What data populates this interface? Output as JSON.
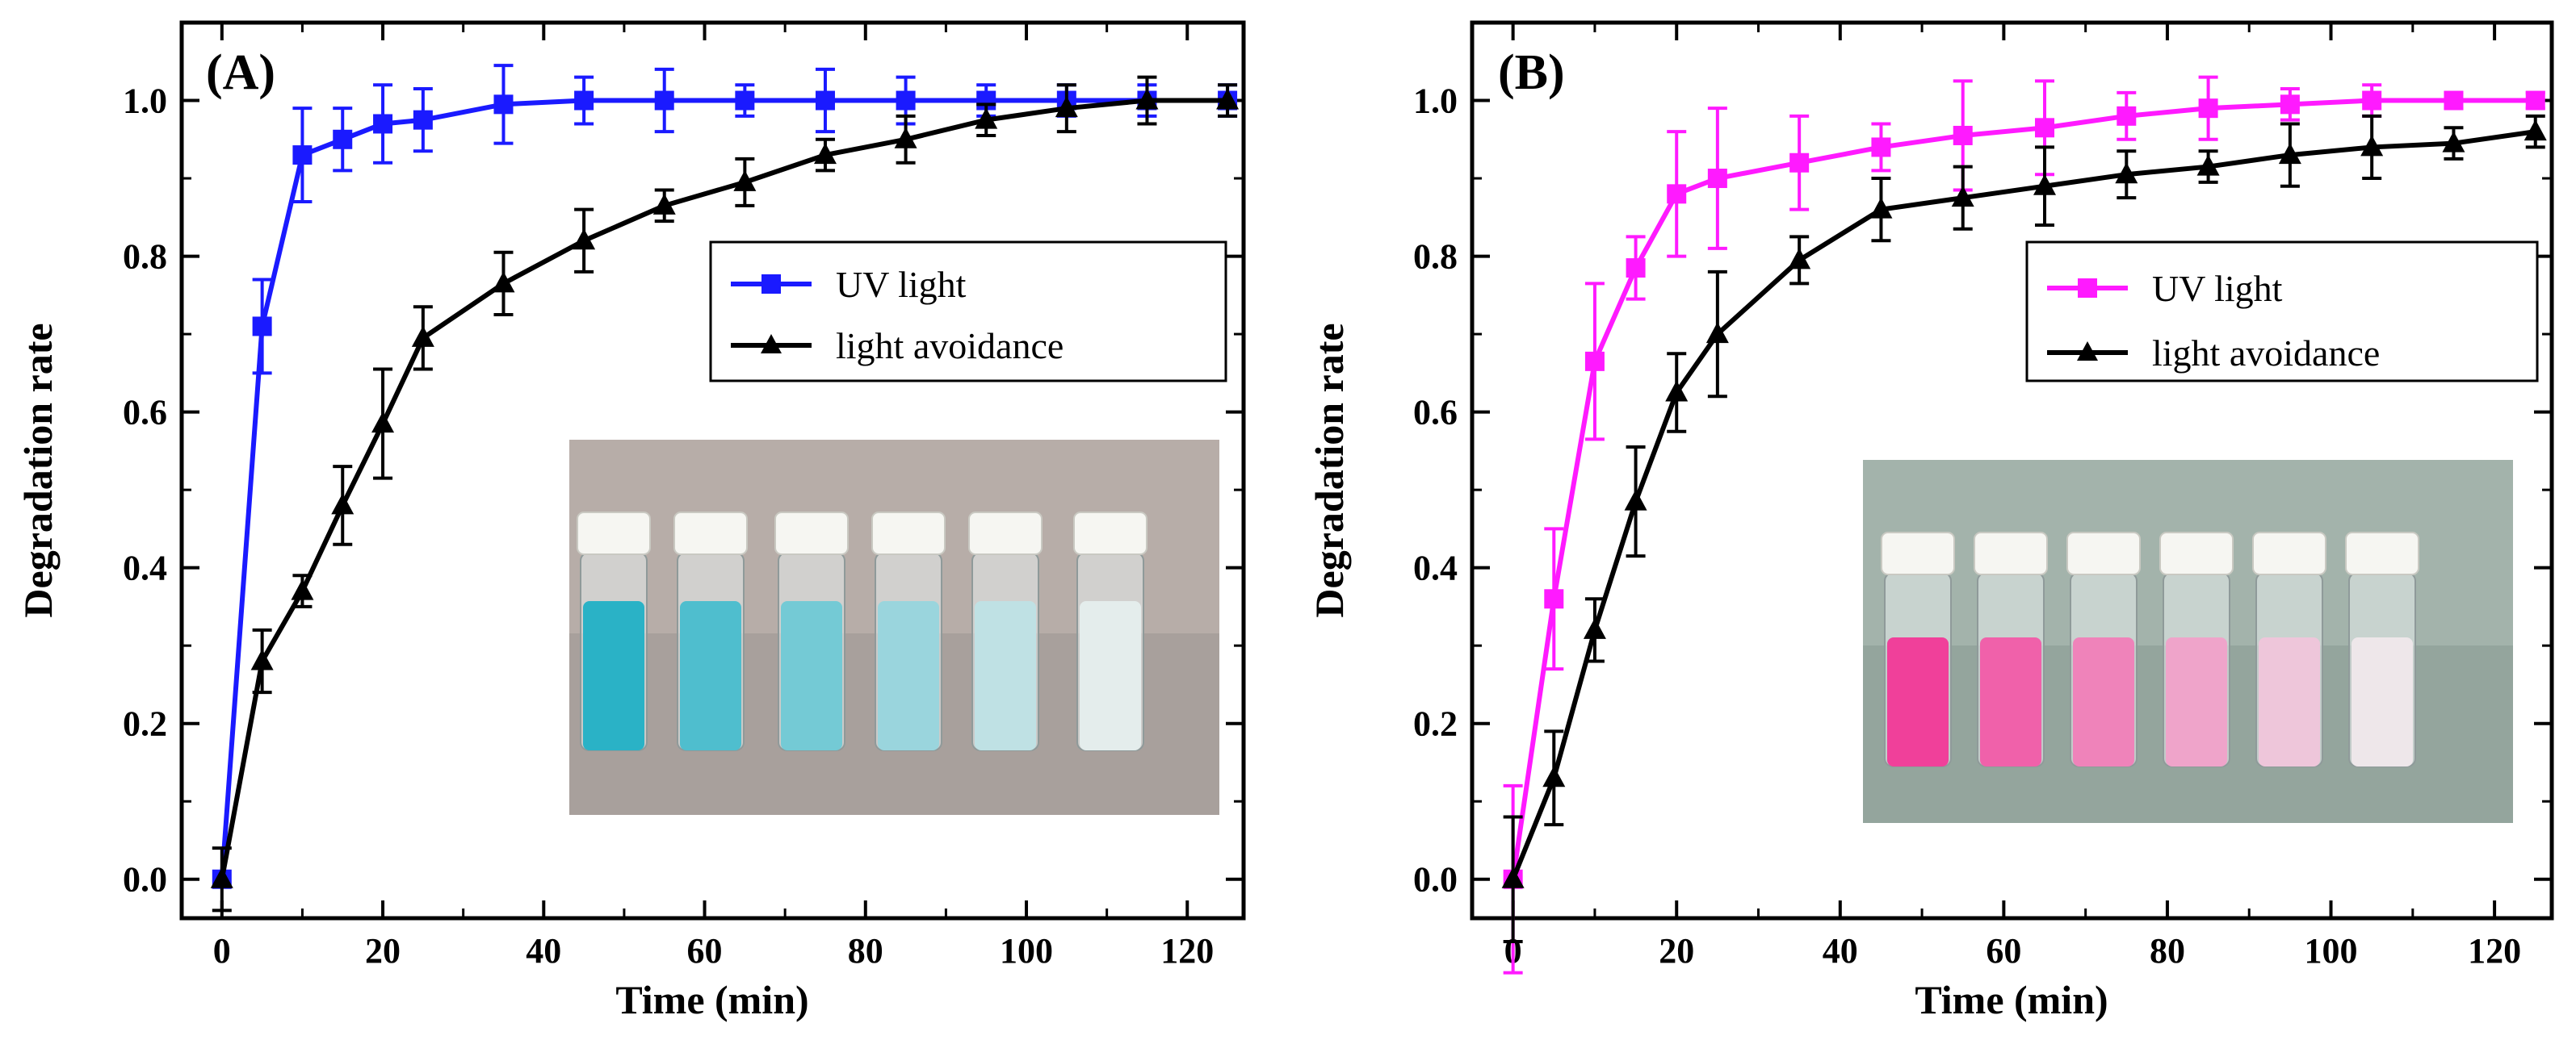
{
  "colors": {
    "uv_a": "#1a1aff",
    "uv_b": "#ff1aff",
    "avoid": "#000000",
    "inset_a_bg": "#b4aaa6",
    "inset_a_liquid": "#2ab2c6",
    "inset_b_bg": "#9fb0a8",
    "inset_b_liquid": "#f0409a"
  },
  "chart_data": [
    {
      "type": "line",
      "panel_label": "(A)",
      "xlabel": "Time (min)",
      "ylabel": "Degradation rate",
      "xlim": [
        -5,
        127
      ],
      "ylim": [
        -0.05,
        1.1
      ],
      "xticks": [
        "0",
        "20",
        "40",
        "60",
        "80",
        "100",
        "120"
      ],
      "yticks": [
        "0.0",
        "0.2",
        "0.4",
        "0.6",
        "0.8",
        "1.0"
      ],
      "legend": [
        "UV light",
        "light avoidance"
      ],
      "legend_position": "center-right",
      "inset": "photo of six vials, blue solution fading to clear",
      "series": [
        {
          "name": "UV light",
          "color_key": "uv_a",
          "marker": "square",
          "x": [
            0,
            5,
            10,
            15,
            20,
            25,
            35,
            45,
            55,
            65,
            75,
            85,
            95,
            105,
            115,
            125
          ],
          "values": [
            0.0,
            0.71,
            0.93,
            0.95,
            0.97,
            0.975,
            0.995,
            1.0,
            1.0,
            1.0,
            1.0,
            1.0,
            1.0,
            1.0,
            1.0,
            1.0
          ],
          "errors": [
            0.0,
            0.06,
            0.06,
            0.04,
            0.05,
            0.04,
            0.05,
            0.03,
            0.04,
            0.02,
            0.04,
            0.03,
            0.02,
            0.02,
            0.02,
            0.02
          ]
        },
        {
          "name": "light avoidance",
          "color_key": "avoid",
          "marker": "triangle",
          "x": [
            0,
            5,
            10,
            15,
            20,
            25,
            35,
            45,
            55,
            65,
            75,
            85,
            95,
            105,
            115,
            125
          ],
          "values": [
            0.0,
            0.28,
            0.37,
            0.48,
            0.585,
            0.695,
            0.765,
            0.82,
            0.865,
            0.895,
            0.93,
            0.95,
            0.975,
            0.99,
            1.0,
            1.0
          ],
          "errors": [
            0.04,
            0.04,
            0.02,
            0.05,
            0.07,
            0.04,
            0.04,
            0.04,
            0.02,
            0.03,
            0.02,
            0.03,
            0.02,
            0.03,
            0.03,
            0.02
          ]
        }
      ]
    },
    {
      "type": "line",
      "panel_label": "(B)",
      "xlabel": "Time (min)",
      "ylabel": "Degradation rate",
      "xlim": [
        -5,
        127
      ],
      "ylim": [
        -0.05,
        1.1
      ],
      "xticks": [
        "0",
        "20",
        "40",
        "60",
        "80",
        "100",
        "120"
      ],
      "yticks": [
        "0.0",
        "0.2",
        "0.4",
        "0.6",
        "0.8",
        "1.0"
      ],
      "legend": [
        "UV light",
        "light avoidance"
      ],
      "legend_position": "center-right",
      "inset": "photo of six vials, pink solution fading to clear",
      "series": [
        {
          "name": "UV light",
          "color_key": "uv_b",
          "marker": "square",
          "x": [
            0,
            5,
            10,
            15,
            20,
            25,
            35,
            45,
            55,
            65,
            75,
            85,
            95,
            105,
            115,
            125
          ],
          "values": [
            0.0,
            0.36,
            0.665,
            0.785,
            0.88,
            0.9,
            0.92,
            0.94,
            0.955,
            0.965,
            0.98,
            0.99,
            0.995,
            1.0,
            1.0,
            1.0
          ],
          "errors": [
            0.12,
            0.09,
            0.1,
            0.04,
            0.08,
            0.09,
            0.06,
            0.03,
            0.07,
            0.06,
            0.03,
            0.04,
            0.02,
            0.02,
            0.01,
            0.01
          ]
        },
        {
          "name": "light avoidance",
          "color_key": "avoid",
          "marker": "triangle",
          "x": [
            0,
            5,
            10,
            15,
            20,
            25,
            35,
            45,
            55,
            65,
            75,
            85,
            95,
            105,
            115,
            125
          ],
          "values": [
            0.0,
            0.13,
            0.32,
            0.485,
            0.625,
            0.7,
            0.795,
            0.86,
            0.875,
            0.89,
            0.905,
            0.915,
            0.93,
            0.94,
            0.945,
            0.96
          ],
          "errors": [
            0.08,
            0.06,
            0.04,
            0.07,
            0.05,
            0.08,
            0.03,
            0.04,
            0.04,
            0.05,
            0.03,
            0.02,
            0.04,
            0.04,
            0.02,
            0.02
          ]
        }
      ]
    }
  ]
}
